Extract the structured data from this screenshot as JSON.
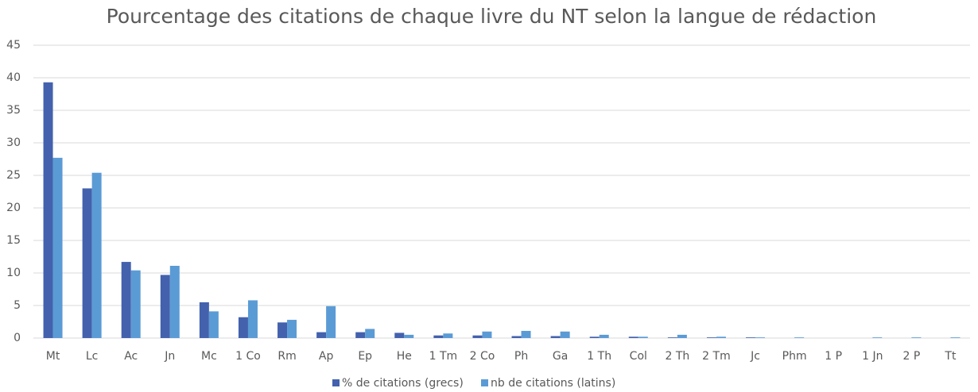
{
  "chart_data": {
    "type": "bar",
    "title": "Pourcentage des citations de chaque livre du NT selon la langue de rédaction",
    "categories": [
      "Mt",
      "Lc",
      "Ac",
      "Jn",
      "Mc",
      "1 Co",
      "Rm",
      "Ap",
      "Ep",
      "He",
      "1 Tm",
      "2 Co",
      "Ph",
      "Ga",
      "1 Th",
      "Col",
      "2 Th",
      "2 Tm",
      "Jc",
      "Phm",
      "1 P",
      "1 Jn",
      "2 P",
      "Tt"
    ],
    "series": [
      {
        "name": "% de citations (grecs)",
        "color": "#4361ad",
        "values": [
          39.3,
          23,
          11.7,
          9.7,
          5.5,
          3.2,
          2.4,
          0.9,
          0.9,
          0.8,
          0.4,
          0.4,
          0.3,
          0.3,
          0.2,
          0.2,
          0.1,
          0.1,
          0.1,
          0,
          0,
          0,
          0,
          0
        ]
      },
      {
        "name": "nb de citations (latins)",
        "color": "#5b9bd5",
        "values": [
          27.7,
          25.4,
          10.4,
          11.1,
          4.1,
          5.8,
          2.8,
          4.9,
          1.4,
          0.5,
          0.7,
          1.0,
          1.1,
          1.0,
          0.5,
          0.2,
          0.5,
          0.2,
          0.1,
          0.1,
          0,
          0.1,
          0.1,
          0.1
        ]
      }
    ],
    "ylim": [
      0,
      45
    ],
    "yticks": [
      0,
      5,
      10,
      15,
      20,
      25,
      30,
      35,
      40,
      45
    ],
    "grid": true,
    "legend": "bottom"
  }
}
